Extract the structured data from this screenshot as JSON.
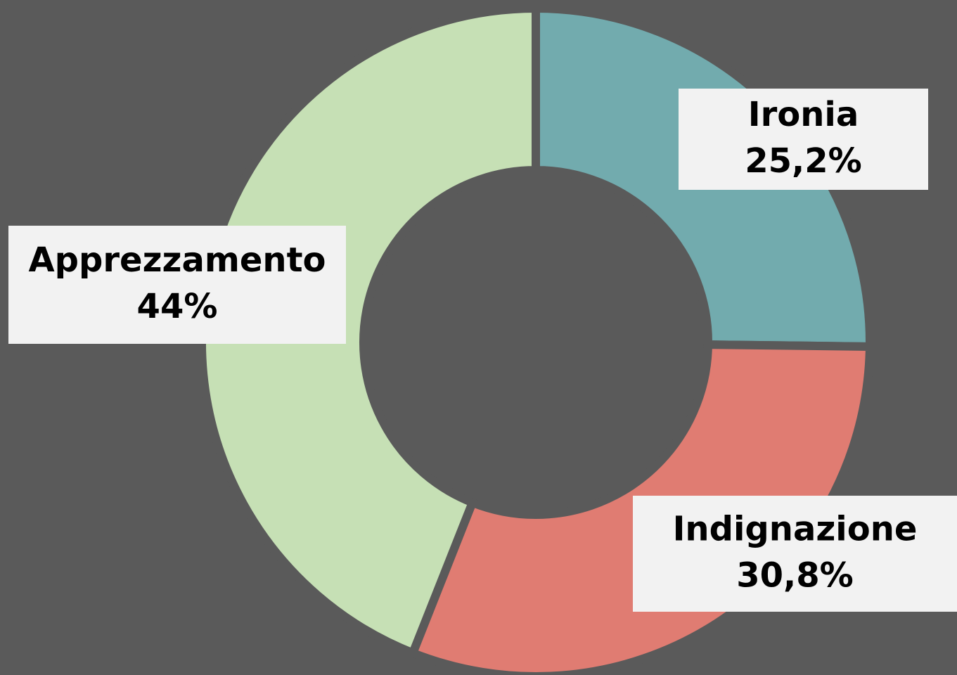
{
  "chart_data": {
    "type": "donut",
    "categories": [
      "Ironia",
      "Indignazione",
      "Apprezzamento"
    ],
    "values": [
      25.2,
      30.8,
      44
    ],
    "value_labels": [
      "25,2%",
      "30,8%",
      "44%"
    ],
    "colors": [
      "#72abae",
      "#e07c72",
      "#c6e0b5"
    ]
  }
}
